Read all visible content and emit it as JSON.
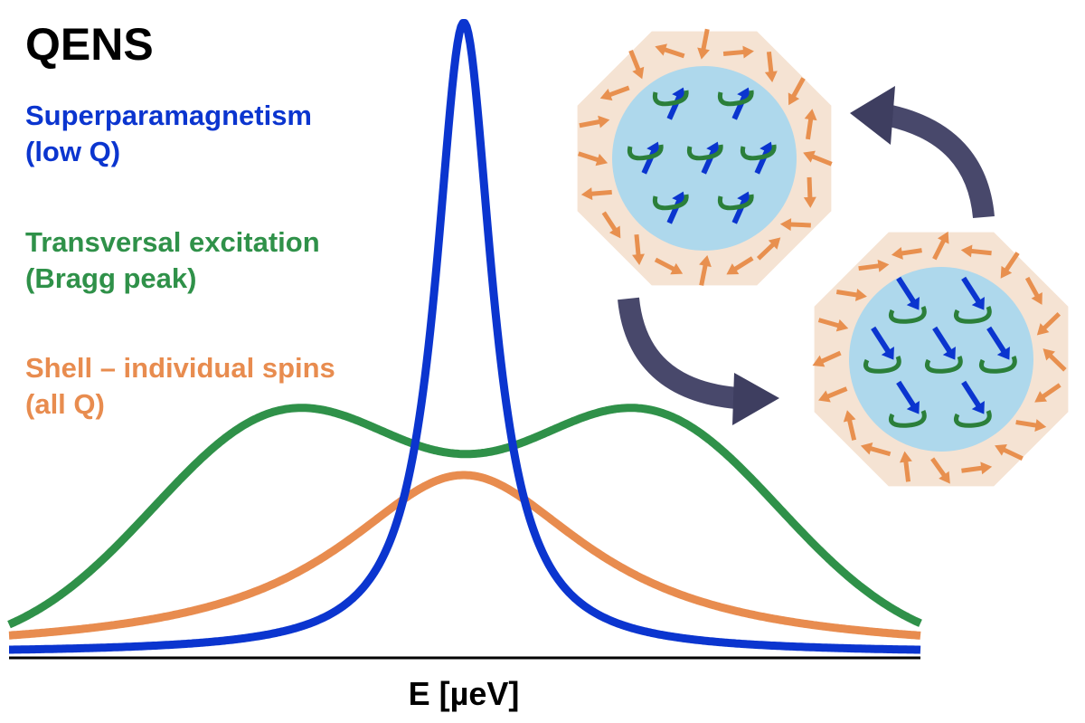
{
  "title": "QENS",
  "legend": [
    {
      "line1": "Superparamagnetism",
      "line2": "(low Q)",
      "color": "#0b35cf"
    },
    {
      "line1": "Transversal excitation",
      "line2": "(Bragg peak)",
      "color": "#2f9149"
    },
    {
      "line1": "Shell – individual spins",
      "line2": "(all Q)",
      "color": "#e88c4f"
    }
  ],
  "xlabel": "E [µeV]",
  "colors": {
    "shell": "#f5e3d3",
    "core": "#aed8ec",
    "shell_arrow": "#e8904f",
    "spin_arrow": "#0b35cf",
    "precession": "#2b7f3a",
    "transition_arrow": "#48486b"
  }
}
